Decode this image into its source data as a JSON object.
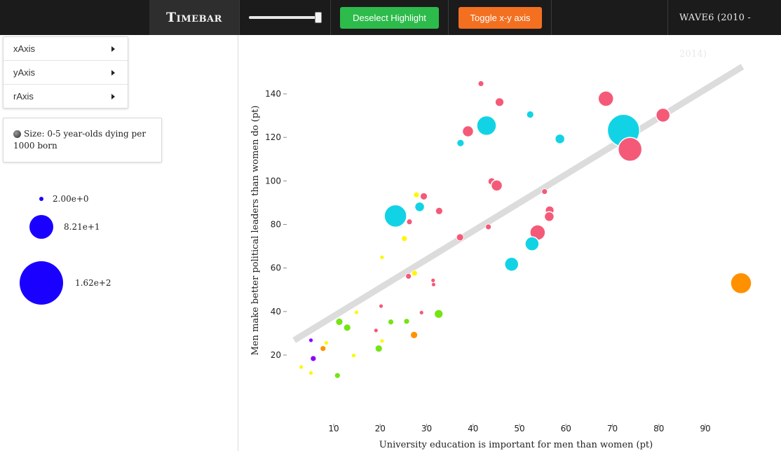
{
  "topbar": {
    "title": "Timebar",
    "deselect_label": "Deselect Highlight",
    "toggle_label": "Toggle x-y axis",
    "wave_label": "WAVE6 (2010 - 2014)",
    "slider_value": 1.0,
    "colors": {
      "bar": "#1b1b1b",
      "green": "#2dbb4b",
      "orange": "#f37021"
    }
  },
  "menu": {
    "items": [
      {
        "label": "xAxis"
      },
      {
        "label": "yAxis"
      },
      {
        "label": "rAxis"
      }
    ]
  },
  "size_legend": {
    "title": "Size: 0-5 year-olds dying per 1000 born",
    "entries": [
      {
        "label": "2.00e+0",
        "value": 2
      },
      {
        "label": "8.21e+1",
        "value": 82.1
      },
      {
        "label": "1.62e+2",
        "value": 162
      }
    ],
    "color": "#1a00ff"
  },
  "chart_data": {
    "type": "scatter",
    "xlabel": "University education is important for men than women (pt)",
    "ylabel": "Men make better political leaders than women do (pt)",
    "xlim": [
      0,
      100
    ],
    "ylim": [
      0,
      160
    ],
    "xticks": [
      10,
      20,
      30,
      40,
      50,
      60,
      70,
      80,
      90
    ],
    "yticks": [
      20,
      40,
      60,
      80,
      100,
      120,
      140
    ],
    "grid": false,
    "trendline": {
      "x": [
        1.5,
        98
      ],
      "y": [
        26.8,
        152.5
      ],
      "color": "#dcdcdc"
    },
    "colors": {
      "red": "#f45a78",
      "cyan": "#12d3e5",
      "orange": "#ff9100",
      "yellow": "#fff700",
      "green": "#74e414",
      "purple": "#8a00ff"
    },
    "points": [
      {
        "x": 41.7,
        "y": 144.7,
        "r": 4,
        "color": "red"
      },
      {
        "x": 45.7,
        "y": 136.2,
        "r": 6,
        "color": "red"
      },
      {
        "x": 68.6,
        "y": 137.8,
        "r": 11,
        "color": "red"
      },
      {
        "x": 52.3,
        "y": 130.5,
        "r": 5,
        "color": "cyan"
      },
      {
        "x": 42.9,
        "y": 125.4,
        "r": 14,
        "color": "cyan"
      },
      {
        "x": 38.9,
        "y": 122.8,
        "r": 8,
        "color": "red"
      },
      {
        "x": 80.9,
        "y": 130.2,
        "r": 10,
        "color": "red"
      },
      {
        "x": 72.4,
        "y": 123.2,
        "r": 23,
        "color": "cyan"
      },
      {
        "x": 73.8,
        "y": 114.5,
        "r": 17,
        "color": "red"
      },
      {
        "x": 58.7,
        "y": 119.3,
        "r": 7,
        "color": "cyan"
      },
      {
        "x": 37.3,
        "y": 117.4,
        "r": 5,
        "color": "cyan"
      },
      {
        "x": 44.0,
        "y": 99.8,
        "r": 5,
        "color": "red"
      },
      {
        "x": 45.1,
        "y": 97.9,
        "r": 8,
        "color": "red"
      },
      {
        "x": 55.4,
        "y": 95.1,
        "r": 4,
        "color": "red"
      },
      {
        "x": 27.8,
        "y": 93.6,
        "r": 4,
        "color": "yellow"
      },
      {
        "x": 29.4,
        "y": 92.9,
        "r": 5,
        "color": "red"
      },
      {
        "x": 28.5,
        "y": 88.1,
        "r": 7,
        "color": "cyan"
      },
      {
        "x": 32.7,
        "y": 86.2,
        "r": 5,
        "color": "red"
      },
      {
        "x": 56.5,
        "y": 86.5,
        "r": 6,
        "color": "red"
      },
      {
        "x": 56.4,
        "y": 83.6,
        "r": 7,
        "color": "red"
      },
      {
        "x": 23.3,
        "y": 83.9,
        "r": 16,
        "color": "cyan"
      },
      {
        "x": 26.3,
        "y": 81.2,
        "r": 4,
        "color": "red"
      },
      {
        "x": 43.3,
        "y": 78.9,
        "r": 4,
        "color": "red"
      },
      {
        "x": 53.9,
        "y": 76.3,
        "r": 11,
        "color": "red"
      },
      {
        "x": 37.2,
        "y": 74.1,
        "r": 5,
        "color": "red"
      },
      {
        "x": 25.2,
        "y": 73.5,
        "r": 4,
        "color": "yellow"
      },
      {
        "x": 52.7,
        "y": 71.1,
        "r": 10,
        "color": "cyan"
      },
      {
        "x": 20.4,
        "y": 64.9,
        "r": 3,
        "color": "yellow"
      },
      {
        "x": 48.3,
        "y": 61.7,
        "r": 10,
        "color": "cyan"
      },
      {
        "x": 97.7,
        "y": 53.0,
        "r": 15,
        "color": "orange"
      },
      {
        "x": 27.4,
        "y": 57.6,
        "r": 4,
        "color": "yellow"
      },
      {
        "x": 26.1,
        "y": 56.2,
        "r": 4,
        "color": "red"
      },
      {
        "x": 31.4,
        "y": 54.3,
        "r": 3,
        "color": "red"
      },
      {
        "x": 31.5,
        "y": 52.4,
        "r": 3,
        "color": "red"
      },
      {
        "x": 20.2,
        "y": 42.5,
        "r": 3,
        "color": "red"
      },
      {
        "x": 14.9,
        "y": 39.6,
        "r": 3,
        "color": "yellow"
      },
      {
        "x": 28.9,
        "y": 39.5,
        "r": 3,
        "color": "red"
      },
      {
        "x": 32.6,
        "y": 38.9,
        "r": 6,
        "color": "green"
      },
      {
        "x": 11.2,
        "y": 35.3,
        "r": 5,
        "color": "green"
      },
      {
        "x": 22.3,
        "y": 35.2,
        "r": 4,
        "color": "green"
      },
      {
        "x": 25.7,
        "y": 35.5,
        "r": 4,
        "color": "green"
      },
      {
        "x": 12.9,
        "y": 32.6,
        "r": 5,
        "color": "green"
      },
      {
        "x": 19.1,
        "y": 31.3,
        "r": 3,
        "color": "red"
      },
      {
        "x": 27.3,
        "y": 29.2,
        "r": 5,
        "color": "orange"
      },
      {
        "x": 5.1,
        "y": 26.8,
        "r": 3,
        "color": "purple"
      },
      {
        "x": 8.4,
        "y": 25.6,
        "r": 3,
        "color": "yellow"
      },
      {
        "x": 20.4,
        "y": 26.5,
        "r": 3,
        "color": "yellow"
      },
      {
        "x": 7.7,
        "y": 23.0,
        "r": 4,
        "color": "orange"
      },
      {
        "x": 19.7,
        "y": 23.0,
        "r": 5,
        "color": "green"
      },
      {
        "x": 14.3,
        "y": 19.8,
        "r": 3,
        "color": "yellow"
      },
      {
        "x": 5.6,
        "y": 18.4,
        "r": 4,
        "color": "purple"
      },
      {
        "x": 3.0,
        "y": 14.5,
        "r": 3,
        "color": "yellow"
      },
      {
        "x": 5.1,
        "y": 11.8,
        "r": 3,
        "color": "yellow"
      },
      {
        "x": 10.8,
        "y": 10.6,
        "r": 4,
        "color": "green"
      }
    ]
  }
}
